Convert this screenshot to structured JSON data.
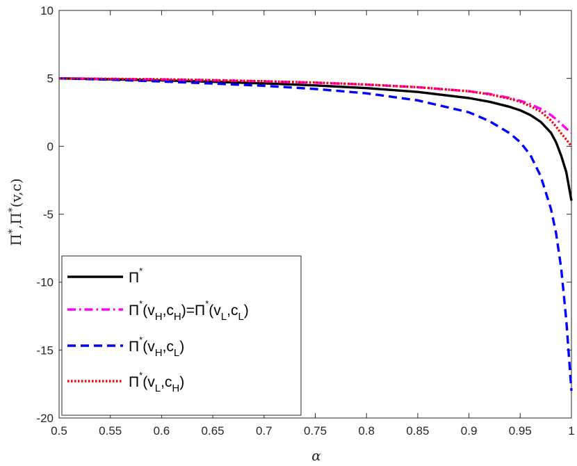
{
  "chart_data": {
    "type": "line",
    "xlabel": "α",
    "ylabel": "Π*,Π*(v,c)",
    "xlim": [
      0.5,
      1.0
    ],
    "ylim": [
      -20,
      10
    ],
    "xticks": [
      "0.5",
      "0.55",
      "0.6",
      "0.65",
      "0.7",
      "0.75",
      "0.8",
      "0.85",
      "0.9",
      "0.95",
      "1"
    ],
    "yticks": [
      "10",
      "5",
      "0",
      "-5",
      "-10",
      "-15",
      "-20"
    ],
    "grid": false,
    "legend_position": "bottom-left",
    "x": [
      0.5,
      0.55,
      0.6,
      0.65,
      0.7,
      0.75,
      0.8,
      0.85,
      0.9,
      0.92,
      0.94,
      0.95,
      0.96,
      0.97,
      0.98,
      0.985,
      0.99,
      0.995,
      1.0
    ],
    "series": [
      {
        "name": "Π*",
        "color": "#000000",
        "style": "solid",
        "values": [
          5.0,
          4.93,
          4.85,
          4.75,
          4.63,
          4.48,
          4.28,
          4.0,
          3.55,
          3.28,
          2.9,
          2.65,
          2.3,
          1.8,
          1.0,
          0.3,
          -0.7,
          -1.9,
          -4.0
        ]
      },
      {
        "name": "Π*(vH,cH)=Π*(vL,cL)",
        "color": "#ff00ff",
        "style": "dashdot",
        "values": [
          5.0,
          4.96,
          4.92,
          4.86,
          4.78,
          4.68,
          4.54,
          4.35,
          4.05,
          3.85,
          3.55,
          3.35,
          3.1,
          2.75,
          2.3,
          2.0,
          1.65,
          1.3,
          1.0
        ]
      },
      {
        "name": "Π*(vH,cL)",
        "color": "#0000ff",
        "style": "dashed",
        "values": [
          5.0,
          4.9,
          4.77,
          4.62,
          4.45,
          4.22,
          3.9,
          3.38,
          2.5,
          1.85,
          0.95,
          0.3,
          -0.65,
          -2.2,
          -4.6,
          -6.4,
          -9.0,
          -12.8,
          -18.0
        ]
      },
      {
        "name": "Π*(vL,cH)",
        "color": "#ff0000",
        "style": "dotted",
        "values": [
          5.0,
          4.97,
          4.93,
          4.87,
          4.79,
          4.69,
          4.55,
          4.35,
          4.05,
          3.82,
          3.5,
          3.28,
          2.95,
          2.55,
          1.9,
          1.45,
          0.95,
          0.5,
          0.0
        ]
      }
    ],
    "legend": [
      {
        "base": "Π",
        "sup": "*",
        "parts": []
      },
      {
        "base": "Π",
        "sup": "*",
        "parts": [
          "(v",
          "H",
          ",c",
          "H",
          ")=Π",
          "*",
          "(v",
          "L",
          ",c",
          "L",
          ")"
        ]
      },
      {
        "base": "Π",
        "sup": "*",
        "parts": [
          "(v",
          "H",
          ",c",
          "L",
          ")"
        ]
      },
      {
        "base": "Π",
        "sup": "*",
        "parts": [
          "(v",
          "L",
          ",c",
          "H",
          ")"
        ]
      }
    ]
  }
}
